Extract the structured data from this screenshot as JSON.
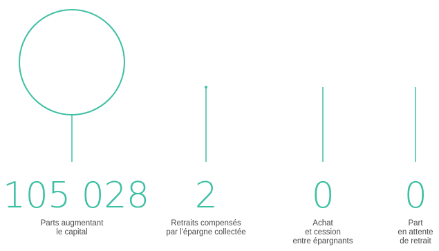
{
  "colors": {
    "accent": "#3dbfa3",
    "value_text": "#3dbfa3",
    "label_text": "#4a4a4a"
  },
  "chart_data": {
    "type": "bubble",
    "items": [
      {
        "value": 105028,
        "display": "105 028",
        "label": [
          "Parts augmentant",
          "le capital"
        ]
      },
      {
        "value": 2,
        "display": "2",
        "label": [
          "Retraits compensés",
          "par l'épargne collectée"
        ]
      },
      {
        "value": 0,
        "display": "0",
        "label": [
          "Achat",
          "et cession",
          "entre épargnants"
        ]
      },
      {
        "value": 0,
        "display": "0",
        "label": [
          "Part",
          "en attente",
          "de retrait"
        ]
      }
    ]
  }
}
